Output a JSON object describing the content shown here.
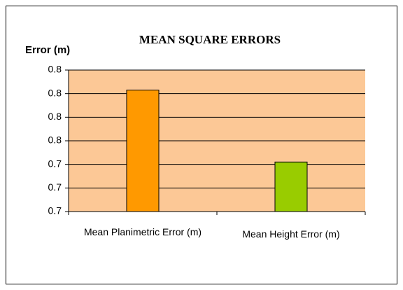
{
  "chart_data": {
    "type": "bar",
    "title": "MEAN SQUARE ERRORS",
    "y_label": "Error (m)",
    "categories": [
      "Mean Planimetric Error (m)",
      "Mean Height Error (m)"
    ],
    "series": [
      {
        "name": "Mean Square Error",
        "colors": [
          "#ff9900",
          "#99cc00"
        ],
        "values": [
          0.803,
          0.742
        ]
      }
    ],
    "ylim": [
      0.7,
      0.82
    ],
    "yticks": [
      {
        "value": 0.7,
        "label": "0.7"
      },
      {
        "value": 0.72,
        "label": "0.7"
      },
      {
        "value": 0.74,
        "label": "0.7"
      },
      {
        "value": 0.76,
        "label": "0.8"
      },
      {
        "value": 0.78,
        "label": "0.8"
      },
      {
        "value": 0.8,
        "label": "0.8"
      },
      {
        "value": 0.82,
        "label": "0.8"
      }
    ],
    "grid": true,
    "plot_background": "#fcc896"
  }
}
